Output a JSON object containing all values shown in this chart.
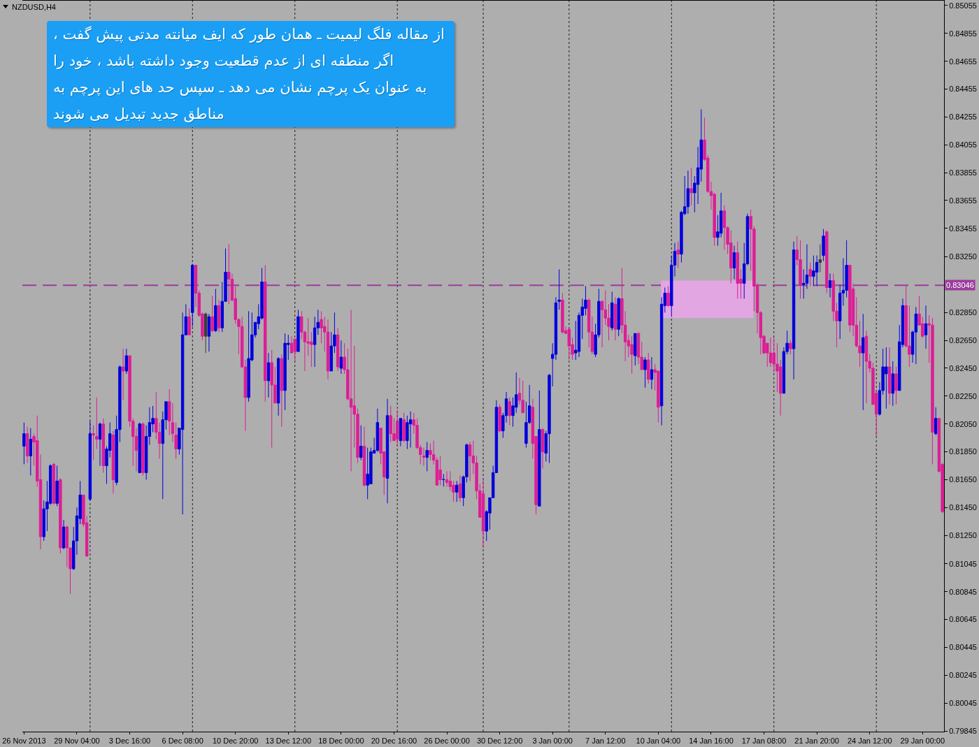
{
  "chart_data": {
    "type": "candlestick",
    "title": "NZDUSD,H4",
    "annotations": [
      "از مقاله فلگ لیمیت ـ همان طور که ایف میانته مدتی پیش گفت ،\nاگر منطقه ای از عدم قطعیت وجود داشته باشد ، خود را\nبه عنوان یک پرچم نشان می دهد ـ سپس حد های این پرچم به\nمناطق جدید تبدیل می شوند"
    ],
    "categories": [
      "26 Nov 2013",
      null,
      null,
      null,
      null,
      null,
      null,
      null,
      null,
      null,
      null,
      null,
      null,
      null,
      null,
      null,
      "29 Nov 04:00",
      null,
      null,
      null,
      null,
      null,
      null,
      null,
      null,
      null,
      null,
      null,
      null,
      null,
      null,
      null,
      "3 Dec 16:00",
      null,
      null,
      null,
      null,
      null,
      null,
      null,
      null,
      null,
      null,
      null,
      null,
      null,
      null,
      null,
      "6 Dec 08:00",
      null,
      null,
      null,
      null,
      null,
      null,
      null,
      null,
      null,
      null,
      null,
      null,
      null,
      null,
      null,
      "10 Dec 20:00",
      null,
      null,
      null,
      null,
      null,
      null,
      null,
      null,
      null,
      null,
      null,
      null,
      null,
      null,
      null,
      "13 Dec 12:00",
      null,
      null,
      null,
      null,
      null,
      null,
      null,
      null,
      null,
      null,
      null,
      null,
      null,
      null,
      null,
      "18 Dec 00:00",
      null,
      null,
      null,
      null,
      null,
      null,
      null,
      null,
      null,
      null,
      null,
      null,
      null,
      null,
      null,
      "20 Dec 16:00",
      null,
      null,
      null,
      null,
      null,
      null,
      null,
      null,
      null,
      null,
      null,
      null,
      null,
      null,
      null,
      "26 Dec 00:00",
      null,
      null,
      null,
      null,
      null,
      null,
      null,
      null,
      null,
      null,
      null,
      null,
      null,
      null,
      null,
      "30 Dec 12:00",
      null,
      null,
      null,
      null,
      null,
      null,
      null,
      null,
      null,
      null,
      null,
      null,
      null,
      null,
      null,
      "3 Jan 00:00",
      null,
      null,
      null,
      null,
      null,
      null,
      null,
      null,
      null,
      null,
      null,
      null,
      null,
      null,
      null,
      "7 Jan 12:00",
      null,
      null,
      null,
      null,
      null,
      null,
      null,
      null,
      null,
      null,
      null,
      null,
      null,
      null,
      null,
      "10 Jan 04:00",
      null,
      null,
      null,
      null,
      null,
      null,
      null,
      null,
      null,
      null,
      null,
      null,
      null,
      null,
      null,
      "14 Jan 16:00",
      null,
      null,
      null,
      null,
      null,
      null,
      null,
      null,
      null,
      null,
      null,
      null,
      null,
      null,
      null,
      "17 Jan 08:00",
      null,
      null,
      null,
      null,
      null,
      null,
      null,
      null,
      null,
      null,
      null,
      null,
      null,
      null,
      null,
      "21 Jan 20:00",
      null,
      null,
      null,
      null,
      null,
      null,
      null,
      null,
      null,
      null,
      null,
      null,
      null,
      null,
      null,
      "24 Jan 12:00",
      null,
      null,
      null,
      null,
      null,
      null,
      null,
      null,
      null,
      null,
      null,
      null,
      null,
      null,
      null,
      "29 Jan 00:00",
      null,
      null,
      null,
      null,
      null,
      null
    ],
    "ohlc": [
      [
        0.8189,
        0.8206,
        0.8176,
        0.8198
      ],
      [
        0.8198,
        0.8203,
        0.8177,
        0.8182
      ],
      [
        0.8182,
        0.8202,
        0.8168,
        0.8194
      ],
      [
        0.8196,
        0.8198,
        0.8175,
        0.8192
      ],
      [
        0.8193,
        0.8211,
        0.816,
        0.8164
      ],
      [
        0.8165,
        0.8183,
        0.8115,
        0.8124
      ],
      [
        0.8124,
        0.815,
        0.8121,
        0.8144
      ],
      [
        0.8144,
        0.8164,
        0.8128,
        0.8149
      ],
      [
        0.8148,
        0.8176,
        0.8147,
        0.8175
      ],
      [
        0.8176,
        0.8177,
        0.8147,
        0.8148
      ],
      [
        0.8148,
        0.8175,
        0.8146,
        0.8164
      ],
      [
        0.8165,
        0.8166,
        0.8112,
        0.8116
      ],
      [
        0.8116,
        0.8136,
        0.8115,
        0.8131
      ],
      [
        0.8131,
        0.8132,
        0.8102,
        0.8116
      ],
      [
        0.8116,
        0.8116,
        0.8083,
        0.8101
      ],
      [
        0.8101,
        0.8131,
        0.81,
        0.8121
      ],
      [
        0.8121,
        0.8145,
        0.8111,
        0.8139
      ],
      [
        0.8137,
        0.8164,
        0.8133,
        0.8154
      ],
      [
        0.8154,
        0.8154,
        0.8131,
        0.8133
      ],
      [
        0.8134,
        0.8139,
        0.811,
        0.811
      ],
      [
        0.8151,
        0.8207,
        0.815,
        0.8198
      ],
      [
        0.8198,
        0.8204,
        0.8179,
        0.8197
      ],
      [
        0.8196,
        0.8224,
        0.8187,
        0.8194
      ],
      [
        0.8194,
        0.8206,
        0.8175,
        0.8205
      ],
      [
        0.8205,
        0.8209,
        0.817,
        0.8175
      ],
      [
        0.8175,
        0.8189,
        0.8162,
        0.8187
      ],
      [
        0.8186,
        0.8206,
        0.8181,
        0.8198
      ],
      [
        0.8197,
        0.82,
        0.8155,
        0.8165
      ],
      [
        0.8163,
        0.8211,
        0.8161,
        0.8201
      ],
      [
        0.8201,
        0.8247,
        0.8192,
        0.8246
      ],
      [
        0.8246,
        0.8259,
        0.8222,
        0.8243
      ],
      [
        0.8243,
        0.8259,
        0.8241,
        0.8254
      ],
      [
        0.8254,
        0.8254,
        0.8203,
        0.8207
      ],
      [
        0.8207,
        0.8209,
        0.8175,
        0.8196
      ],
      [
        0.8196,
        0.8202,
        0.8171,
        0.8186
      ],
      [
        0.817,
        0.8206,
        0.817,
        0.8205
      ],
      [
        0.8205,
        0.8206,
        0.8168,
        0.817
      ],
      [
        0.817,
        0.8204,
        0.8165,
        0.8196
      ],
      [
        0.8196,
        0.8217,
        0.819,
        0.8206
      ],
      [
        0.8205,
        0.8218,
        0.8199,
        0.8209
      ],
      [
        0.8209,
        0.8228,
        0.8194,
        0.8199
      ],
      [
        0.8199,
        0.8206,
        0.818,
        0.8191
      ],
      [
        0.8191,
        0.8214,
        0.8151,
        0.8208
      ],
      [
        0.8208,
        0.8221,
        0.8201,
        0.8221
      ],
      [
        0.8221,
        0.823,
        0.8197,
        0.8207
      ],
      [
        0.8206,
        0.822,
        0.8192,
        0.8198
      ],
      [
        0.8197,
        0.8206,
        0.818,
        0.8187
      ],
      [
        0.8187,
        0.8202,
        0.8183,
        0.8202
      ],
      [
        0.8201,
        0.8285,
        0.814,
        0.8269
      ],
      [
        0.8269,
        0.8291,
        0.8269,
        0.8282
      ],
      [
        0.8282,
        0.8288,
        0.8269,
        0.8269
      ],
      [
        0.8285,
        0.832,
        0.8275,
        0.8319
      ],
      [
        0.8319,
        0.8319,
        0.8289,
        0.8299
      ],
      [
        0.8299,
        0.8301,
        0.8282,
        0.8283
      ],
      [
        0.8284,
        0.8285,
        0.8265,
        0.8268
      ],
      [
        0.8268,
        0.8285,
        0.8256,
        0.8284
      ],
      [
        0.8268,
        0.8284,
        0.8257,
        0.8282
      ],
      [
        0.8282,
        0.8297,
        0.8271,
        0.8272
      ],
      [
        0.8272,
        0.8302,
        0.8271,
        0.829
      ],
      [
        0.829,
        0.8294,
        0.8271,
        0.8274
      ],
      [
        0.8274,
        0.8307,
        0.8271,
        0.8293
      ],
      [
        0.8293,
        0.8331,
        0.8293,
        0.8314
      ],
      [
        0.8314,
        0.8334,
        0.8291,
        0.8309
      ],
      [
        0.8309,
        0.8313,
        0.8293,
        0.8294
      ],
      [
        0.8295,
        0.8304,
        0.8277,
        0.828
      ],
      [
        0.828,
        0.8281,
        0.8255,
        0.8275
      ],
      [
        0.8275,
        0.8282,
        0.8245,
        0.8246
      ],
      [
        0.8246,
        0.8251,
        0.82,
        0.8224
      ],
      [
        0.8224,
        0.8286,
        0.8221,
        0.8252
      ],
      [
        0.8251,
        0.8285,
        0.825,
        0.8269
      ],
      [
        0.8269,
        0.8278,
        0.8267,
        0.8278
      ],
      [
        0.8277,
        0.8291,
        0.8273,
        0.8282
      ],
      [
        0.8281,
        0.8317,
        0.828,
        0.8307
      ],
      [
        0.8307,
        0.8319,
        0.8221,
        0.8236
      ],
      [
        0.8236,
        0.8256,
        0.8224,
        0.8249
      ],
      [
        0.8249,
        0.8258,
        0.8188,
        0.8233
      ],
      [
        0.8233,
        0.8246,
        0.822,
        0.822
      ],
      [
        0.822,
        0.8253,
        0.8211,
        0.8252
      ],
      [
        0.8252,
        0.8255,
        0.8203,
        0.8229
      ],
      [
        0.8229,
        0.827,
        0.8215,
        0.8263
      ],
      [
        0.8262,
        0.8269,
        0.8251,
        0.8263
      ],
      [
        0.8263,
        0.8268,
        0.8256,
        0.8256
      ],
      [
        0.8266,
        0.8266,
        0.825,
        0.8257
      ],
      [
        0.8257,
        0.8287,
        0.8257,
        0.8282
      ],
      [
        0.8282,
        0.8286,
        0.8266,
        0.8271
      ],
      [
        0.8271,
        0.8272,
        0.8243,
        0.8264
      ],
      [
        0.8264,
        0.8281,
        0.8254,
        0.8263
      ],
      [
        0.8264,
        0.8271,
        0.8246,
        0.8262
      ],
      [
        0.8262,
        0.8282,
        0.8246,
        0.8274
      ],
      [
        0.8274,
        0.8287,
        0.8269,
        0.8278
      ],
      [
        0.828,
        0.8286,
        0.8263,
        0.8274
      ],
      [
        0.8275,
        0.8282,
        0.8257,
        0.8271
      ],
      [
        0.8271,
        0.828,
        0.8237,
        0.8243
      ],
      [
        0.8243,
        0.8271,
        0.8243,
        0.8261
      ],
      [
        0.8261,
        0.8285,
        0.8256,
        0.8269
      ],
      [
        0.8269,
        0.8274,
        0.8243,
        0.8246
      ],
      [
        0.8245,
        0.8265,
        0.8241,
        0.8253
      ],
      [
        0.8253,
        0.8263,
        0.8241,
        0.8244
      ],
      [
        0.8244,
        0.8259,
        0.8222,
        0.8223
      ],
      [
        0.8223,
        0.8287,
        0.8171,
        0.8217
      ],
      [
        0.8218,
        0.8261,
        0.8188,
        0.8212
      ],
      [
        0.8212,
        0.8216,
        0.8177,
        0.8181
      ],
      [
        0.8181,
        0.8204,
        0.8179,
        0.8189
      ],
      [
        0.8189,
        0.8203,
        0.816,
        0.8161
      ],
      [
        0.8161,
        0.8188,
        0.8151,
        0.8169
      ],
      [
        0.8162,
        0.8188,
        0.8162,
        0.8185
      ],
      [
        0.8184,
        0.8195,
        0.8184,
        0.8186
      ],
      [
        0.8186,
        0.8216,
        0.8185,
        0.8206
      ],
      [
        0.8202,
        0.8202,
        0.8176,
        0.8184
      ],
      [
        0.8185,
        0.8185,
        0.8154,
        0.8167
      ],
      [
        0.8166,
        0.8223,
        0.8148,
        0.8211
      ],
      [
        0.8211,
        0.8218,
        0.8192,
        0.8198
      ],
      [
        0.8198,
        0.8209,
        0.8193,
        0.8193
      ],
      [
        0.8207,
        0.8215,
        0.8189,
        0.8194
      ],
      [
        0.8193,
        0.8209,
        0.8189,
        0.8209
      ],
      [
        0.8208,
        0.8213,
        0.8192,
        0.8193
      ],
      [
        0.8193,
        0.8211,
        0.8187,
        0.8206
      ],
      [
        0.8205,
        0.8214,
        0.8188,
        0.8208
      ],
      [
        0.8208,
        0.8213,
        0.8198,
        0.8204
      ],
      [
        0.8204,
        0.8209,
        0.8187,
        0.8188
      ],
      [
        0.8188,
        0.819,
        0.8176,
        0.8183
      ],
      [
        0.8182,
        0.8188,
        0.8175,
        0.8181
      ],
      [
        0.8181,
        0.8192,
        0.8171,
        0.8186
      ],
      [
        0.8186,
        0.8191,
        0.8179,
        0.8183
      ],
      [
        0.8183,
        0.8193,
        0.8176,
        0.8179
      ],
      [
        0.8179,
        0.8181,
        0.8161,
        0.8161
      ],
      [
        0.8172,
        0.8182,
        0.8161,
        0.8165
      ],
      [
        0.8165,
        0.8169,
        0.816,
        0.8165
      ],
      [
        0.8165,
        0.8171,
        0.816,
        0.8163
      ],
      [
        0.8164,
        0.8171,
        0.8157,
        0.816
      ],
      [
        0.8161,
        0.8164,
        0.8149,
        0.8156
      ],
      [
        0.8156,
        0.8164,
        0.8149,
        0.8161
      ],
      [
        0.8162,
        0.8168,
        0.8149,
        0.8152
      ],
      [
        0.8152,
        0.8168,
        0.8146,
        0.8167
      ],
      [
        0.8167,
        0.8191,
        0.8163,
        0.819
      ],
      [
        0.819,
        0.8192,
        0.8164,
        0.8182
      ],
      [
        0.8182,
        0.8193,
        0.8169,
        0.8177
      ],
      [
        0.8177,
        0.8182,
        0.8151,
        0.8157
      ],
      [
        0.8157,
        0.8162,
        0.8138,
        0.8138
      ],
      [
        0.8155,
        0.8166,
        0.8116,
        0.8128
      ],
      [
        0.8128,
        0.8143,
        0.8121,
        0.8142
      ],
      [
        0.8141,
        0.8152,
        0.8129,
        0.8152
      ],
      [
        0.8152,
        0.8175,
        0.8152,
        0.817
      ],
      [
        0.817,
        0.8222,
        0.817,
        0.8217
      ],
      [
        0.8217,
        0.8219,
        0.8199,
        0.82
      ],
      [
        0.82,
        0.8213,
        0.8195,
        0.8211
      ],
      [
        0.8211,
        0.8228,
        0.8206,
        0.8223
      ],
      [
        0.8221,
        0.8224,
        0.8204,
        0.8211
      ],
      [
        0.8211,
        0.8224,
        0.8203,
        0.8218
      ],
      [
        0.8217,
        0.8242,
        0.8213,
        0.8226
      ],
      [
        0.8227,
        0.8238,
        0.8219,
        0.8222
      ],
      [
        0.8222,
        0.8236,
        0.8213,
        0.8213
      ],
      [
        0.8191,
        0.8221,
        0.8188,
        0.8206
      ],
      [
        0.8206,
        0.8233,
        0.8205,
        0.8218
      ],
      [
        0.8217,
        0.8223,
        0.818,
        0.8191
      ],
      [
        0.8196,
        0.8196,
        0.814,
        0.8147
      ],
      [
        0.8146,
        0.8229,
        0.8146,
        0.8201
      ],
      [
        0.8201,
        0.8202,
        0.8173,
        0.8185
      ],
      [
        0.8184,
        0.82,
        0.8178,
        0.8198
      ],
      [
        0.8198,
        0.8241,
        0.8177,
        0.824
      ],
      [
        0.8252,
        0.8263,
        0.8232,
        0.8255
      ],
      [
        0.8255,
        0.8296,
        0.8251,
        0.8292
      ],
      [
        0.8293,
        0.8316,
        0.8287,
        0.8294
      ],
      [
        0.8294,
        0.8299,
        0.827,
        0.8271
      ],
      [
        0.8272,
        0.8275,
        0.827,
        0.827
      ],
      [
        0.8273,
        0.8274,
        0.8251,
        0.8261
      ],
      [
        0.8262,
        0.8267,
        0.8251,
        0.8255
      ],
      [
        0.8256,
        0.8279,
        0.8251,
        0.8258
      ],
      [
        0.8257,
        0.8285,
        0.8253,
        0.8283
      ],
      [
        0.8283,
        0.8295,
        0.8266,
        0.8289
      ],
      [
        0.8288,
        0.8304,
        0.8283,
        0.8294
      ],
      [
        0.8294,
        0.8295,
        0.826,
        0.8271
      ],
      [
        0.8271,
        0.8282,
        0.8255,
        0.8257
      ],
      [
        0.8255,
        0.8277,
        0.8253,
        0.8269
      ],
      [
        0.8269,
        0.8302,
        0.8267,
        0.8293
      ],
      [
        0.8293,
        0.8294,
        0.826,
        0.8287
      ],
      [
        0.8287,
        0.8301,
        0.8276,
        0.8281
      ],
      [
        0.8281,
        0.8291,
        0.8265,
        0.8275
      ],
      [
        0.8274,
        0.83,
        0.8272,
        0.8292
      ],
      [
        0.8291,
        0.8296,
        0.8265,
        0.8273
      ],
      [
        0.8273,
        0.8296,
        0.8268,
        0.8295
      ],
      [
        0.8295,
        0.8317,
        0.827,
        0.8276
      ],
      [
        0.8276,
        0.8286,
        0.825,
        0.8264
      ],
      [
        0.8265,
        0.8269,
        0.8253,
        0.8261
      ],
      [
        0.8262,
        0.8268,
        0.8241,
        0.8255
      ],
      [
        0.8254,
        0.827,
        0.8247,
        0.827
      ],
      [
        0.827,
        0.8271,
        0.8248,
        0.8253
      ],
      [
        0.8253,
        0.8264,
        0.8244,
        0.8244
      ],
      [
        0.8244,
        0.8253,
        0.8231,
        0.8251
      ],
      [
        0.8251,
        0.8256,
        0.8234,
        0.8237
      ],
      [
        0.8237,
        0.8253,
        0.823,
        0.8244
      ],
      [
        0.8244,
        0.8248,
        0.8229,
        0.8242
      ],
      [
        0.8243,
        0.8243,
        0.8206,
        0.8217
      ],
      [
        0.8218,
        0.8296,
        0.8204,
        0.8291
      ],
      [
        0.829,
        0.8303,
        0.8285,
        0.8299
      ],
      [
        0.8299,
        0.8304,
        0.8289,
        0.829
      ],
      [
        0.829,
        0.8326,
        0.8282,
        0.8319
      ],
      [
        0.8319,
        0.8335,
        0.8311,
        0.8329
      ],
      [
        0.833,
        0.8336,
        0.8317,
        0.8327
      ],
      [
        0.8327,
        0.8358,
        0.8321,
        0.8357
      ],
      [
        0.8356,
        0.8383,
        0.8355,
        0.8361
      ],
      [
        0.8361,
        0.8387,
        0.8356,
        0.8374
      ],
      [
        0.8374,
        0.8389,
        0.8362,
        0.8371
      ],
      [
        0.8371,
        0.8383,
        0.8357,
        0.8378
      ],
      [
        0.8377,
        0.8404,
        0.8363,
        0.8389
      ],
      [
        0.8388,
        0.8431,
        0.8379,
        0.8409
      ],
      [
        0.8409,
        0.8425,
        0.8394,
        0.8395
      ],
      [
        0.8396,
        0.8398,
        0.8371,
        0.8372
      ],
      [
        0.8372,
        0.8379,
        0.8359,
        0.8369
      ],
      [
        0.837,
        0.8371,
        0.8333,
        0.8339
      ],
      [
        0.8339,
        0.8355,
        0.8333,
        0.8343
      ],
      [
        0.8342,
        0.8371,
        0.8339,
        0.8358
      ],
      [
        0.8358,
        0.8362,
        0.833,
        0.8346
      ],
      [
        0.8346,
        0.8347,
        0.8327,
        0.8334
      ],
      [
        0.8335,
        0.8344,
        0.8306,
        0.8317
      ],
      [
        0.8317,
        0.8333,
        0.8309,
        0.8328
      ],
      [
        0.8328,
        0.8336,
        0.8295,
        0.8306
      ],
      [
        0.8309,
        0.8316,
        0.8295,
        0.8306
      ],
      [
        0.8306,
        0.8335,
        0.8295,
        0.832
      ],
      [
        0.832,
        0.8356,
        0.8319,
        0.8354
      ],
      [
        0.8354,
        0.8359,
        0.8315,
        0.8345
      ],
      [
        0.8345,
        0.8347,
        0.8286,
        0.8304
      ],
      [
        0.8304,
        0.8306,
        0.827,
        0.8285
      ],
      [
        0.8285,
        0.8286,
        0.8255,
        0.8267
      ],
      [
        0.8268,
        0.8269,
        0.8255,
        0.8256
      ],
      [
        0.8263,
        0.8263,
        0.8246,
        0.8256
      ],
      [
        0.8256,
        0.8267,
        0.8246,
        0.8249
      ],
      [
        0.8256,
        0.8267,
        0.8242,
        0.8248
      ],
      [
        0.8248,
        0.8263,
        0.8228,
        0.8243
      ],
      [
        0.8246,
        0.8251,
        0.8211,
        0.8227
      ],
      [
        0.8227,
        0.826,
        0.8227,
        0.8257
      ],
      [
        0.8257,
        0.8272,
        0.8255,
        0.8263
      ],
      [
        0.8263,
        0.8265,
        0.8255,
        0.8259
      ],
      [
        0.8259,
        0.8336,
        0.8237,
        0.833
      ],
      [
        0.833,
        0.834,
        0.8319,
        0.8323
      ],
      [
        0.8323,
        0.8337,
        0.8295,
        0.8305
      ],
      [
        0.8305,
        0.8316,
        0.8295,
        0.8306
      ],
      [
        0.8306,
        0.8334,
        0.8302,
        0.8312
      ],
      [
        0.8316,
        0.8321,
        0.8304,
        0.8311
      ],
      [
        0.8311,
        0.8326,
        0.8304,
        0.8315
      ],
      [
        0.8314,
        0.8326,
        0.8304,
        0.8321
      ],
      [
        0.8321,
        0.8334,
        0.8314,
        0.8323
      ],
      [
        0.8326,
        0.8345,
        0.8322,
        0.834
      ],
      [
        0.8343,
        0.8344,
        0.8299,
        0.8303
      ],
      [
        0.8303,
        0.8313,
        0.8296,
        0.8308
      ],
      [
        0.8308,
        0.8313,
        0.8279,
        0.8286
      ],
      [
        0.8286,
        0.8292,
        0.826,
        0.8279
      ],
      [
        0.8279,
        0.8305,
        0.8266,
        0.8299
      ],
      [
        0.8299,
        0.8324,
        0.829,
        0.8301
      ],
      [
        0.8301,
        0.8337,
        0.8296,
        0.8319
      ],
      [
        0.8319,
        0.8319,
        0.8271,
        0.8276
      ],
      [
        0.8302,
        0.8306,
        0.8268,
        0.8276
      ],
      [
        0.8276,
        0.8296,
        0.826,
        0.8261
      ],
      [
        0.8261,
        0.8279,
        0.8246,
        0.8256
      ],
      [
        0.8256,
        0.8284,
        0.8215,
        0.8267
      ],
      [
        0.8268,
        0.8272,
        0.822,
        0.825
      ],
      [
        0.825,
        0.8255,
        0.8242,
        0.8245
      ],
      [
        0.8245,
        0.8249,
        0.8219,
        0.8219
      ],
      [
        0.8227,
        0.8229,
        0.8196,
        0.8212
      ],
      [
        0.8212,
        0.8235,
        0.8211,
        0.8229
      ],
      [
        0.8229,
        0.8259,
        0.8226,
        0.8246
      ],
      [
        0.8241,
        0.826,
        0.8216,
        0.8246
      ],
      [
        0.8246,
        0.826,
        0.8219,
        0.8227
      ],
      [
        0.8227,
        0.825,
        0.8218,
        0.8241
      ],
      [
        0.8241,
        0.8246,
        0.8219,
        0.8229
      ],
      [
        0.8229,
        0.8276,
        0.8229,
        0.8264
      ],
      [
        0.8262,
        0.8295,
        0.826,
        0.829
      ],
      [
        0.829,
        0.8304,
        0.826,
        0.8261
      ],
      [
        0.8261,
        0.829,
        0.8246,
        0.8255
      ],
      [
        0.8255,
        0.8272,
        0.8249,
        0.8271
      ],
      [
        0.8271,
        0.8289,
        0.8248,
        0.8284
      ],
      [
        0.8284,
        0.8297,
        0.8276,
        0.8276
      ],
      [
        0.8277,
        0.8282,
        0.8267,
        0.8268
      ],
      [
        0.8269,
        0.829,
        0.8259,
        0.8277
      ],
      [
        0.8277,
        0.8283,
        0.8249,
        0.8276
      ],
      [
        0.8276,
        0.8281,
        0.8176,
        0.8199
      ],
      [
        0.8198,
        0.8217,
        0.8197,
        0.8209
      ],
      [
        0.8209,
        0.8209,
        0.817,
        0.8171
      ],
      [
        0.8176,
        0.8177,
        0.8141,
        0.8142
      ]
    ],
    "colors": [
      "#0000dc",
      "#dc1e96",
      "#0000dc",
      "#dc1e96",
      "#dc1e96",
      "#dc1e96",
      "#0000dc",
      "#0000dc",
      "#0000dc",
      "#dc1e96",
      "#0000dc",
      "#dc1e96",
      "#0000dc",
      "#dc1e96",
      "#dc1e96",
      "#0000dc",
      "#0000dc",
      "#0000dc",
      "#dc1e96",
      "#dc1e96",
      "#0000dc",
      "#dc1e96",
      "#dc1e96",
      "#0000dc",
      "#dc1e96",
      "#0000dc",
      "#0000dc",
      "#dc1e96",
      "#0000dc",
      "#0000dc",
      "#dc1e96",
      "#0000dc",
      "#dc1e96",
      "#dc1e96",
      "#dc1e96",
      "#0000dc",
      "#dc1e96",
      "#0000dc",
      "#0000dc",
      "#0000dc",
      "#dc1e96",
      "#dc1e96",
      "#0000dc",
      "#0000dc",
      "#dc1e96",
      "#dc1e96",
      "#dc1e96",
      "#0000dc",
      "#0000dc",
      "#0000dc",
      "#dc1e96",
      "#0000dc",
      "#dc1e96",
      "#dc1e96",
      "#dc1e96",
      "#3c3c3c",
      "#0000dc",
      "#dc1e96",
      "#0000dc",
      "#dc1e96",
      "#0000dc",
      "#0000dc",
      "#dc1e96",
      "#dc1e96",
      "#dc1e96",
      "#dc1e96",
      "#dc1e96",
      "#dc1e96",
      "#0000dc",
      "#0000dc",
      "#0000dc",
      "#0000dc",
      "#0000dc",
      "#dc1e96",
      "#0000dc",
      "#dc1e96",
      "#dc1e96",
      "#0000dc",
      "#dc1e96",
      "#0000dc",
      "#0000dc",
      "#dc1e96",
      "#dc1e96",
      "#0000dc",
      "#dc1e96",
      "#dc1e96",
      "#dc1e96",
      "#dc1e96",
      "#0000dc",
      "#0000dc",
      "#dc1e96",
      "#dc1e96",
      "#dc1e96",
      "#0000dc",
      "#0000dc",
      "#dc1e96",
      "#0000dc",
      "#dc1e96",
      "#dc1e96",
      "#dc1e96",
      "#dc1e96",
      "#dc1e96",
      "#0000dc",
      "#dc1e96",
      "#0000dc",
      "#0000dc",
      "#0000dc",
      "#0000dc",
      "#dc1e96",
      "#dc1e96",
      "#0000dc",
      "#dc1e96",
      "#dc1e96",
      "#dc1e96",
      "#0000dc",
      "#dc1e96",
      "#0000dc",
      "#0000dc",
      "#dc1e96",
      "#dc1e96",
      "#dc1e96",
      "#dc1e96",
      "#0000dc",
      "#dc1e96",
      "#dc1e96",
      "#dc1e96",
      "#dc1e96",
      "#0000dc",
      "#dc1e96",
      "#dc1e96",
      "#dc1e96",
      "#0000dc",
      "#dc1e96",
      "#0000dc",
      "#0000dc",
      "#dc1e96",
      "#dc1e96",
      "#dc1e96",
      "#dc1e96",
      "#dc1e96",
      "#0000dc",
      "#0000dc",
      "#0000dc",
      "#0000dc",
      "#dc1e96",
      "#0000dc",
      "#0000dc",
      "#dc1e96",
      "#0000dc",
      "#0000dc",
      "#dc1e96",
      "#dc1e96",
      "#0000dc",
      "#0000dc",
      "#dc1e96",
      "#dc1e96",
      "#0000dc",
      "#dc1e96",
      "#0000dc",
      "#0000dc",
      "#0000dc",
      "#0000dc",
      "#0000dc",
      "#dc1e96",
      "#dc1e96",
      "#dc1e96",
      "#dc1e96",
      "#0000dc",
      "#0000dc",
      "#0000dc",
      "#0000dc",
      "#dc1e96",
      "#dc1e96",
      "#0000dc",
      "#0000dc",
      "#dc1e96",
      "#dc1e96",
      "#dc1e96",
      "#0000dc",
      "#dc1e96",
      "#0000dc",
      "#dc1e96",
      "#dc1e96",
      "#dc1e96",
      "#dc1e96",
      "#0000dc",
      "#dc1e96",
      "#dc1e96",
      "#0000dc",
      "#dc1e96",
      "#0000dc",
      "#dc1e96",
      "#dc1e96",
      "#0000dc",
      "#0000dc",
      "#dc1e96",
      "#0000dc",
      "#0000dc",
      "#dc1e96",
      "#0000dc",
      "#0000dc",
      "#0000dc",
      "#dc1e96",
      "#0000dc",
      "#0000dc",
      "#0000dc",
      "#dc1e96",
      "#dc1e96",
      "#dc1e96",
      "#dc1e96",
      "#0000dc",
      "#0000dc",
      "#dc1e96",
      "#dc1e96",
      "#dc1e96",
      "#0000dc",
      "#dc1e96",
      "#dc1e96",
      "#0000dc",
      "#0000dc",
      "#dc1e96",
      "#dc1e96",
      "#dc1e96",
      "#dc1e96",
      "#dc1e96",
      "#dc1e96",
      "#dc1e96",
      "#dc1e96",
      "#dc1e96",
      "#dc1e96",
      "#0000dc",
      "#0000dc",
      "#dc1e96",
      "#0000dc",
      "#dc1e96",
      "#dc1e96",
      "#0000dc",
      "#0000dc",
      "#dc1e96",
      "#0000dc",
      "#0000dc",
      "#3c3c3c",
      "#0000dc",
      "#dc1e96",
      "#0000dc",
      "#dc1e96",
      "#dc1e96",
      "#0000dc",
      "#0000dc",
      "#0000dc",
      "#dc1e96",
      "#dc1e96",
      "#dc1e96",
      "#dc1e96",
      "#0000dc",
      "#dc1e96",
      "#dc1e96",
      "#dc1e96",
      "#dc1e96",
      "#0000dc",
      "#0000dc",
      "#0000dc",
      "#dc1e96",
      "#0000dc",
      "#dc1e96",
      "#0000dc",
      "#0000dc",
      "#dc1e96",
      "#dc1e96",
      "#0000dc",
      "#0000dc",
      "#dc1e96",
      "#dc1e96",
      "#0000dc",
      "#dc1e96",
      "#dc1e96",
      "#0000dc",
      "#dc1e96",
      "#dc1e96"
    ],
    "ylim": [
      0.7984,
      0.8509
    ],
    "yticks": [
      0.85055,
      0.84855,
      0.84655,
      0.84455,
      0.84255,
      0.84055,
      0.83855,
      0.83655,
      0.83455,
      {
        "value": 0.8325,
        "label": "0.83250"
      },
      {
        "value": 0.8285,
        "label": "0.82850"
      },
      {
        "value": 0.8265,
        "label": "0.82650"
      },
      {
        "value": 0.8245,
        "label": "0.82450"
      },
      {
        "value": 0.8225,
        "label": "0.82250"
      },
      {
        "value": 0.8205,
        "label": "0.82050"
      },
      {
        "value": 0.8185,
        "label": "0.81850"
      },
      {
        "value": 0.8165,
        "label": "0.81650"
      },
      {
        "value": 0.8145,
        "label": "0.81450"
      },
      {
        "value": 0.8125,
        "label": "0.81250"
      },
      0.81045,
      0.80845,
      0.80645,
      0.80445,
      0.80245,
      0.80045,
      0.79845
    ],
    "ref_lines": [
      {
        "axis": "y",
        "value": 0.83046,
        "label": "0.83046",
        "line_style": "dashed",
        "color": "#9c3c9c"
      }
    ],
    "bands": [
      {
        "axis": "y",
        "from": 0.8281,
        "to": 0.8308,
        "color": "#e2a6e2"
      }
    ]
  }
}
